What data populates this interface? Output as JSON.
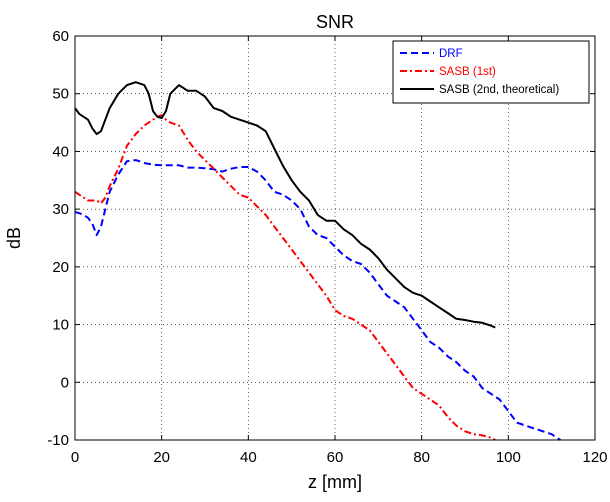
{
  "chart_data": {
    "type": "line",
    "title": "SNR",
    "xlabel": "z [mm]",
    "ylabel": "dB",
    "xlim": [
      0,
      120
    ],
    "ylim": [
      -10,
      60
    ],
    "xticks": [
      0,
      20,
      40,
      60,
      80,
      100,
      120
    ],
    "yticks": [
      -10,
      0,
      10,
      20,
      30,
      40,
      50,
      60
    ],
    "grid": true,
    "legend_position": "top-right",
    "series": [
      {
        "name": "DRF",
        "color": "#0000ff",
        "style": "dashed",
        "x": [
          0,
          1,
          2,
          3,
          4,
          5,
          6,
          7,
          8,
          10,
          12,
          14,
          16,
          18,
          20,
          22,
          24,
          26,
          28,
          30,
          32,
          34,
          36,
          38,
          40,
          42,
          44,
          46,
          48,
          50,
          52,
          54,
          56,
          58,
          60,
          62,
          64,
          66,
          68,
          70,
          72,
          74,
          76,
          78,
          80,
          82,
          84,
          86,
          88,
          90,
          92,
          94,
          96,
          98,
          100,
          102,
          104,
          106,
          108,
          110,
          112
        ],
        "y": [
          29.5,
          29.3,
          29,
          28.5,
          27.5,
          25.5,
          27,
          30,
          33,
          36,
          38.3,
          38.5,
          38,
          37.7,
          37.6,
          37.6,
          37.6,
          37.2,
          37.2,
          37.1,
          36.9,
          36.5,
          37,
          37.3,
          37.3,
          36.5,
          35,
          33,
          32.5,
          31.5,
          30,
          27,
          25.5,
          25,
          23.5,
          22,
          21,
          20.5,
          19,
          17,
          15,
          14,
          13,
          11,
          9,
          7,
          6,
          4.5,
          3.5,
          2,
          1,
          -1,
          -2,
          -3,
          -5,
          -7,
          -7.5,
          -8,
          -8.5,
          -9,
          -10
        ]
      },
      {
        "name": "SASB (1st)",
        "color": "#ff0000",
        "style": "dashdot",
        "x": [
          0,
          1,
          2,
          3,
          4,
          5,
          6,
          7,
          8,
          10,
          12,
          14,
          16,
          18,
          19,
          20,
          21,
          22,
          24,
          26,
          28,
          30,
          32,
          34,
          36,
          38,
          40,
          42,
          44,
          46,
          48,
          50,
          52,
          54,
          56,
          58,
          60,
          62,
          64,
          66,
          68,
          70,
          72,
          74,
          76,
          78,
          80,
          82,
          84,
          86,
          88,
          90,
          92,
          94,
          96,
          97
        ],
        "y": [
          33,
          32.5,
          32,
          31.5,
          31.5,
          31.5,
          31,
          32,
          34,
          37,
          41,
          43,
          44.5,
          45.5,
          46,
          46.3,
          45.5,
          45,
          44.5,
          42,
          40,
          38.5,
          37,
          35.5,
          34,
          32.5,
          32,
          30.5,
          29,
          27,
          25,
          23,
          21,
          19,
          17,
          15,
          12.5,
          11.5,
          11,
          10,
          9,
          7,
          5,
          3,
          1,
          -1,
          -2,
          -3,
          -4,
          -6,
          -7.5,
          -8.5,
          -9,
          -9.2,
          -9.6,
          -10
        ]
      },
      {
        "name": "SASB (2nd, theoretical)",
        "color": "#000000",
        "style": "solid",
        "x": [
          0,
          1,
          2,
          3,
          4,
          5,
          6,
          7,
          8,
          10,
          12,
          14,
          16,
          17,
          18,
          19,
          20,
          21,
          22,
          24,
          26,
          28,
          30,
          32,
          34,
          36,
          38,
          40,
          42,
          44,
          46,
          48,
          50,
          52,
          54,
          56,
          58,
          60,
          62,
          64,
          66,
          68,
          70,
          72,
          74,
          76,
          78,
          80,
          82,
          84,
          86,
          88,
          90,
          92,
          94,
          96,
          97
        ],
        "y": [
          47.5,
          46.5,
          46,
          45.5,
          44,
          43,
          43.5,
          45.5,
          47.5,
          50,
          51.5,
          52,
          51.5,
          50,
          47,
          46,
          45.8,
          47,
          50,
          51.5,
          50.5,
          50.5,
          49.5,
          47.5,
          47,
          46,
          45.5,
          45,
          44.5,
          43.5,
          40.5,
          37.5,
          35,
          33,
          31.5,
          29,
          28,
          28,
          26.5,
          25.5,
          24,
          23,
          21.5,
          19.5,
          18,
          16.5,
          15.5,
          15,
          14,
          13,
          12,
          11,
          10.8,
          10.5,
          10.3,
          9.8,
          9.5
        ]
      }
    ]
  }
}
